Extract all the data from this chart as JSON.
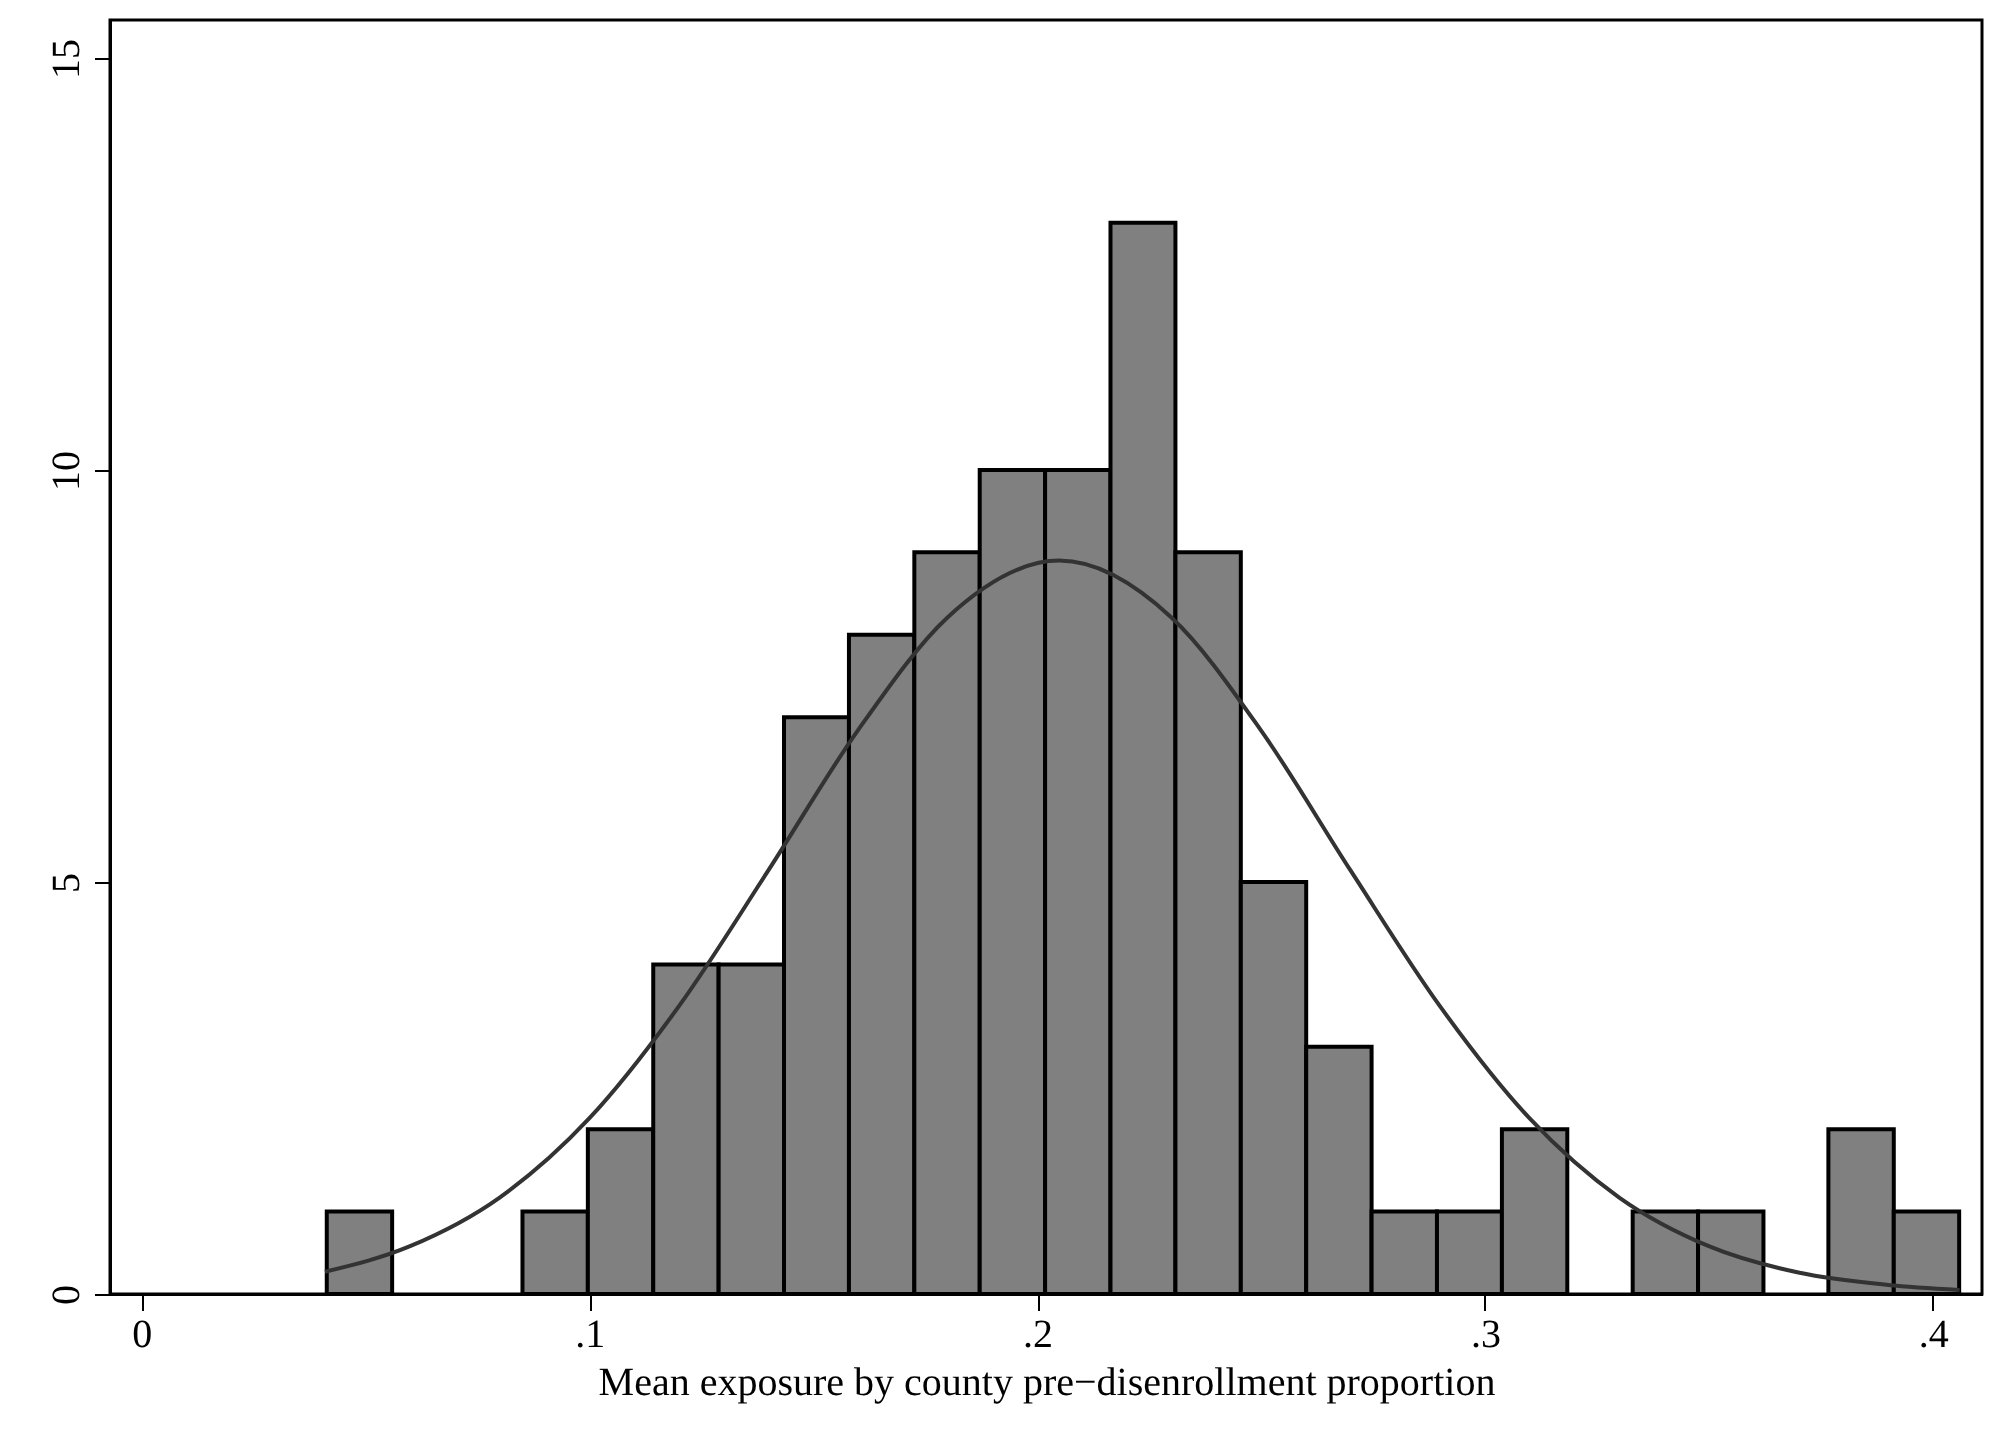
{
  "chart_data": {
    "type": "histogram",
    "xlabel": "Mean exposure by county pre−disenrollment proportion",
    "xlim": [
      -0.007,
      0.411
    ],
    "ylim": [
      0,
      15.46
    ],
    "xticks": [
      0,
      {
        "value": 0.1,
        "label": ".1"
      },
      {
        "value": 0.2,
        "label": ".2"
      },
      {
        "value": 0.3,
        "label": ".3"
      },
      {
        "value": 0.4,
        "label": ".4"
      }
    ],
    "yticks": [
      0,
      5,
      10,
      15
    ],
    "grid": false,
    "series": [
      {
        "color": "#808080",
        "bins": [
          0.0414,
          0.056,
          0.0706,
          0.0851,
          0.0997,
          0.1143,
          0.1289,
          0.1435,
          0.158,
          0.1726,
          0.1872,
          0.2018,
          0.2164,
          0.2309,
          0.2455,
          0.2601,
          0.2747,
          0.2893,
          0.3038,
          0.3184,
          0.333,
          0.3476,
          0.3622,
          0.3767,
          0.3913,
          0.4059
        ],
        "values": [
          1,
          0,
          0,
          1,
          2,
          4,
          4,
          7,
          8,
          9,
          10,
          10,
          13,
          9,
          5,
          3,
          1,
          1,
          2,
          0,
          1,
          1,
          0,
          2,
          1
        ]
      },
      {
        "type": "line",
        "color": "#333333",
        "x": [
          0.041,
          0.06,
          0.08,
          0.1,
          0.12,
          0.14,
          0.16,
          0.18,
          0.205,
          0.23,
          0.25,
          0.27,
          0.29,
          0.31,
          0.33,
          0.35,
          0.37,
          0.39,
          0.406
        ],
        "values": [
          0.27,
          0.58,
          1.17,
          2.13,
          3.49,
          5.14,
          6.84,
          8.21,
          8.9,
          8.21,
          6.84,
          5.14,
          3.49,
          2.13,
          1.17,
          0.58,
          0.26,
          0.11,
          0.05
        ]
      }
    ]
  }
}
